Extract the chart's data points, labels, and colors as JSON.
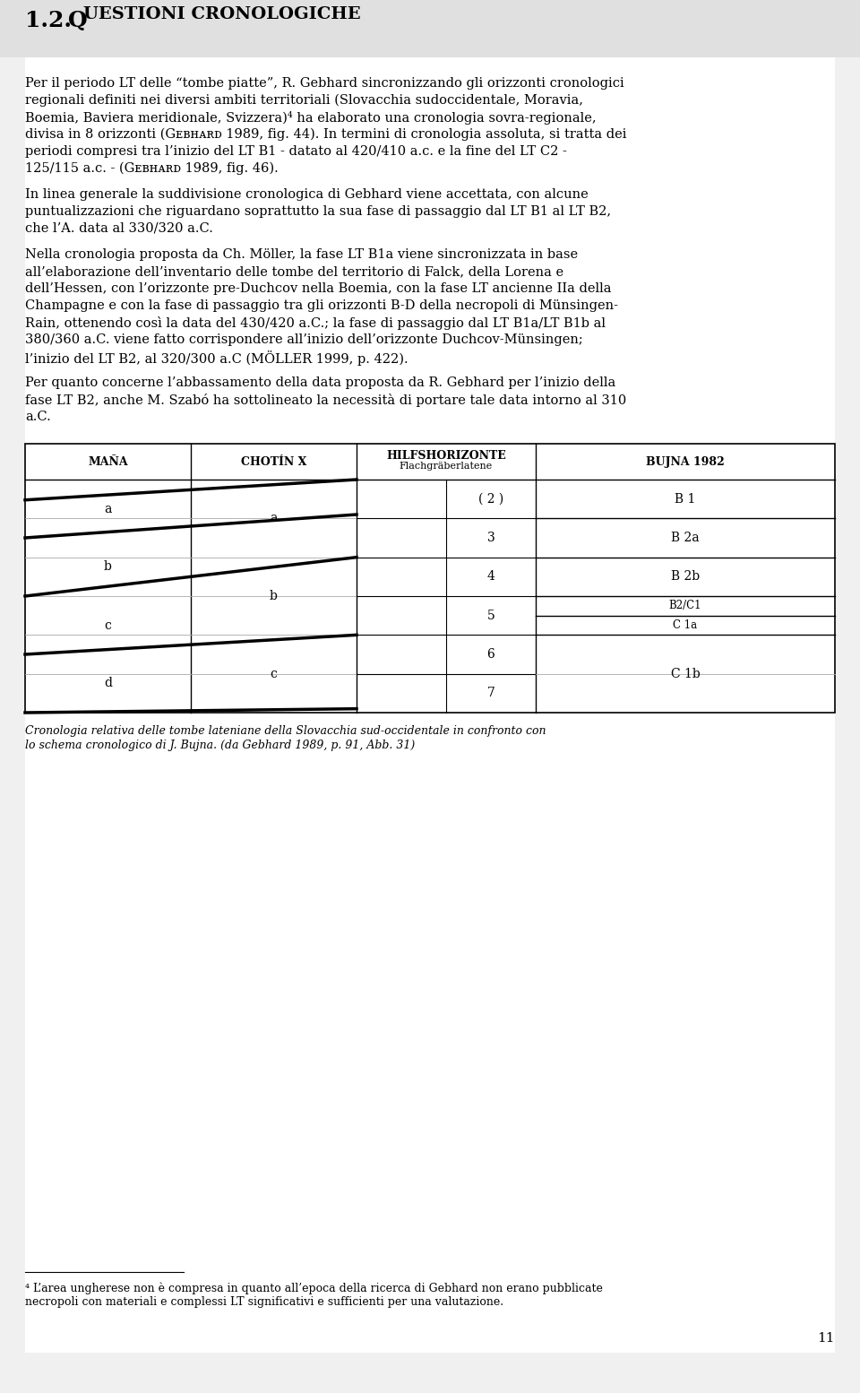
{
  "page_bg": "#f0f0f0",
  "content_bg": "#ffffff",
  "heading_bg": "#e0e0e0",
  "heading_num": "1.2.",
  "heading_big": "Q",
  "heading_rest": "UESTIONI CRONOLOGICHE",
  "body_lines_p1": [
    "Per il periodo LT delle “tombe piatte”, R. Gebhard sincronizzando gli orizzonti cronologici",
    "regionali definiti nei diversi ambiti territoriali (Slovacchia sudoccidentale, Moravia,",
    "Boemia, Baviera meridionale, Svizzera)⁴ ha elaborato una cronologia sovra-regionale,",
    "divisa in 8 orizzonti (Gᴇʙʜᴀʀᴅ 1989, fig. 44). In termini di cronologia assoluta, si tratta dei",
    "periodi compresi tra l’inizio del LT B1 - datato al 420/410 a.c. e la fine del LT C2 -",
    "125/115 a.c. - (Gᴇʙʜᴀʀᴅ 1989, fig. 46)."
  ],
  "body_lines_p2": [
    "In linea generale la suddivisione cronologica di Gebhard viene accettata, con alcune",
    "puntualizzazioni che riguardano soprattutto la sua fase di passaggio dal LT B1 al LT B2,",
    "che l’A. data al 330/320 a.C."
  ],
  "body_lines_p3": [
    "Nella cronologia proposta da Ch. Möller, la fase LT B1a viene sincronizzata in base",
    "all’elaborazione dell’inventario delle tombe del territorio di Falck, della Lorena e",
    "dell’Hessen, con l’orizzonte pre-Duchcov nella Boemia, con la fase LT ancienne IIa della",
    "Champagne e con la fase di passaggio tra gli orizzonti B-D della necropoli di Münsingen-",
    "Rain, ottenendo così la data del 430/420 a.C.; la fase di passaggio dal LT B1a/LT B1b al",
    "380/360 a.C. viene fatto corrispondere all’inizio dell’orizzonte Duchcov-Münsingen;",
    "l’inizio del LT B2, al 320/300 a.C (MÖLLER 1999, p. 422)."
  ],
  "body_lines_p4": [
    "Per quanto concerne l’abbassamento della data proposta da R. Gebhard per l’inizio della",
    "fase LT B2, anche M. Szabó ha sottolineato la necessità di portare tale data intorno al 310",
    "a.C."
  ],
  "col_headers": [
    "MAÑA",
    "CHOTÍN X",
    "HILFSHORIZONTE",
    "BUJNA 1982"
  ],
  "col_subheader": "Flachgräberlatene",
  "hilfs_labels": [
    "( 2 )",
    "3",
    "4",
    "5",
    "6",
    "7"
  ],
  "mana_labels": [
    "a",
    "b",
    "c",
    "d"
  ],
  "chotin_labels": [
    "a",
    "b",
    "c"
  ],
  "bujna_labels": [
    "B 1",
    "B 2a",
    "B 2b",
    "B2/C1",
    "C 1a",
    "C 1b"
  ],
  "bujna_row_fracs": [
    0,
    1,
    2,
    3,
    3.5,
    4,
    6
  ],
  "chart_caption_line1": "Cronologia relativa delle tombe lateniane della Slovacchia sud-occidentale in confronto con",
  "chart_caption_line2": "lo schema cronologico di J. Bujna. (da Gebhard 1989, p. 91, Abb. 31)",
  "footnote_text_lines": [
    "⁴ L’area ungherese non è compresa in quanto all’epoca della ricerca di Gebhard non erano pubblicate",
    "necropoli con materiali e complessi LT significativi e sufficienti per una valutazione."
  ],
  "page_number": "11"
}
